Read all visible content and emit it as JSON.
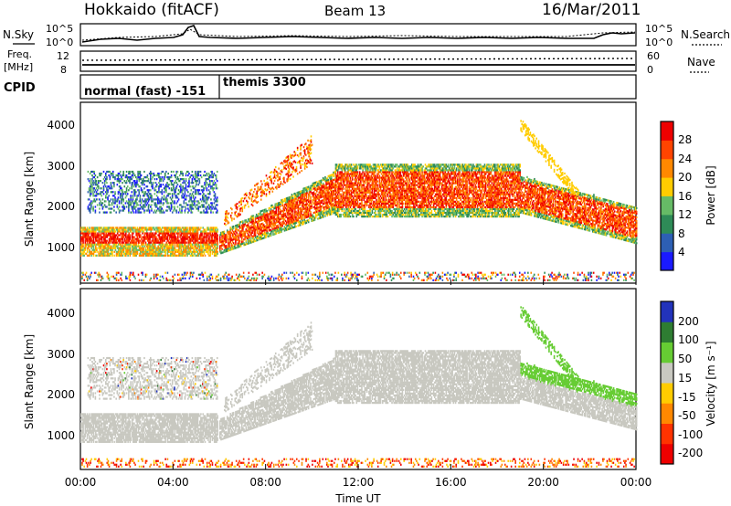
{
  "header": {
    "station": "Hokkaido (fitACF)",
    "beam": "Beam 13",
    "date": "16/Mar/2011"
  },
  "chart_data": {
    "type": "heatmap",
    "xlabel": "Time UT",
    "xlim": [
      "00:00",
      "24:00"
    ],
    "x_ticks": [
      "00:00",
      "04:00",
      "08:00",
      "12:00",
      "16:00",
      "20:00",
      "00:00"
    ],
    "noise_panel": {
      "left_label": "N.Sky",
      "right_label": "N.Search",
      "left_ticks": [
        "10^5",
        "10^0"
      ],
      "right_ticks": [
        "10^5",
        "10^0"
      ]
    },
    "freq_panel": {
      "left_label_1": "Freq.",
      "left_label_2": "[MHz]",
      "right_label": "Nave",
      "left_ticks": [
        "12",
        "8"
      ],
      "right_ticks": [
        "60",
        "0"
      ]
    },
    "cpid_panel": {
      "label": "CPID",
      "modes": [
        {
          "name": "normal (fast) -151",
          "start_hour": 0,
          "end_hour": 6
        },
        {
          "name": "themis 3300",
          "start_hour": 6,
          "end_hour": 24
        }
      ]
    },
    "power_panel": {
      "ylabel": "Slant Range [km]",
      "y_ticks": [
        "1000",
        "2000",
        "3000",
        "4000"
      ],
      "ylim": [
        200,
        4600
      ],
      "colorbar_label": "Power [dB]",
      "colorbar_ticks": [
        "4",
        "8",
        "12",
        "16",
        "20",
        "24",
        "28"
      ],
      "colorbar_range": [
        0,
        32
      ],
      "colors": [
        "#1a1aff",
        "#2d5fb4",
        "#2e8b57",
        "#66bb66",
        "#ffcc00",
        "#ff8800",
        "#ff4400",
        "#ee0000"
      ]
    },
    "velocity_panel": {
      "ylabel": "Slant Range [km]",
      "y_ticks": [
        "1000",
        "2000",
        "3000",
        "4000"
      ],
      "ylim": [
        200,
        4600
      ],
      "colorbar_label": "Velocity [m s⁻¹]",
      "colorbar_ticks": [
        "200",
        "100",
        "50",
        "15",
        "-15",
        "-50",
        "-100",
        "-200"
      ],
      "colors": [
        "#2233bb",
        "#2e7d32",
        "#66cc33",
        "#c8c8c0",
        "#ffcc00",
        "#ff8800",
        "#ff3300",
        "#ee0000"
      ],
      "ground_scatter_color": "#c8c8c0"
    }
  }
}
